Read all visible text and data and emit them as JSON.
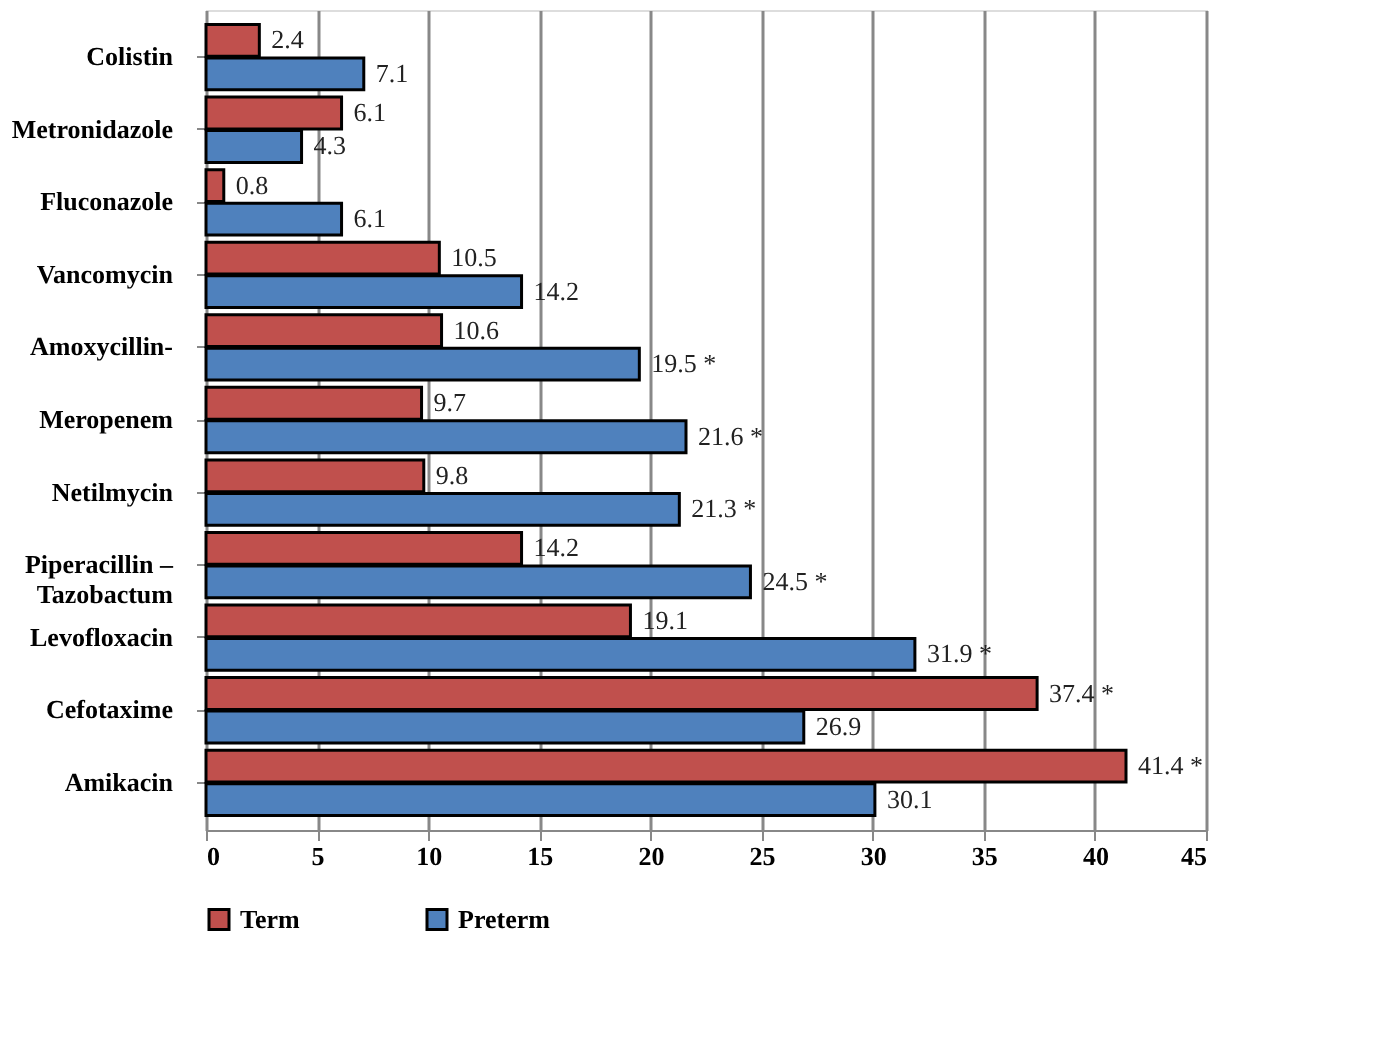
{
  "chart_data": {
    "type": "bar",
    "orientation": "horizontal",
    "categories": [
      "Colistin",
      "Metronidazole",
      "Fluconazole",
      "Vancomycin",
      "Amoxycillin-",
      "Meropenem",
      "Netilmycin",
      "Piperacillin –\nTazobactum",
      "Levofloxacin",
      "Cefotaxime",
      "Amikacin"
    ],
    "series": [
      {
        "name": "Term",
        "color": "#c0504d",
        "values": [
          2.4,
          6.1,
          0.8,
          10.5,
          10.6,
          9.7,
          9.8,
          14.2,
          19.1,
          37.4,
          41.4
        ],
        "value_labels": [
          "2.4",
          "6.1",
          "0.8",
          "10.5",
          "10.6",
          "9.7",
          "9.8",
          "14.2",
          "19.1",
          "37.4 *",
          "41.4 *"
        ]
      },
      {
        "name": "Preterm",
        "color": "#4f81bd",
        "values": [
          7.1,
          4.3,
          6.1,
          14.2,
          19.5,
          21.6,
          21.3,
          24.5,
          31.9,
          26.9,
          30.1
        ],
        "value_labels": [
          "7.1",
          "4.3",
          "6.1",
          "14.2",
          "19.5 *",
          "21.6 *",
          "21.3 *",
          "24.5 *",
          "31.9 *",
          "26.9",
          "30.1"
        ]
      }
    ],
    "xlim": [
      0,
      45
    ],
    "xticks": [
      0,
      5,
      10,
      15,
      20,
      25,
      30,
      35,
      40,
      45
    ],
    "grid": "x",
    "legend": "bottom"
  }
}
